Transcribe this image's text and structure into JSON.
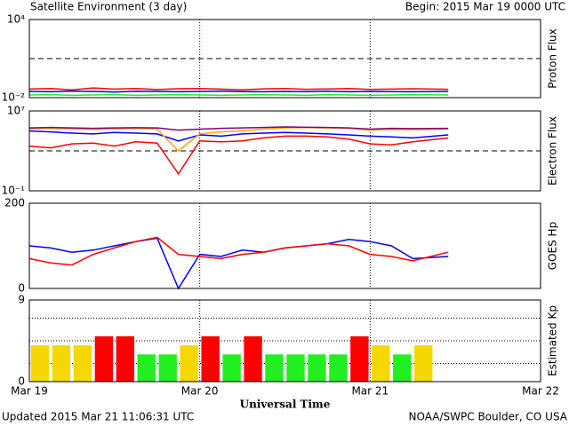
{
  "header": {
    "title": "Satellite Environment (3 day)",
    "begin": "Begin:  2015 Mar 19 0000 UTC"
  },
  "footer": {
    "updated": "Updated 2015 Mar 21 11:06:31 UTC",
    "credit": "NOAA/SWPC Boulder, CO USA"
  },
  "chart_data": [
    {
      "type": "line",
      "ylabel": "Proton Flux",
      "log": true,
      "ylim": [
        0.01,
        10000
      ],
      "yticks": [
        {
          "value": 10000,
          "label": "10⁴"
        },
        {
          "value": 0.01,
          "label": "10⁻²"
        }
      ],
      "xlim": [
        0,
        72
      ],
      "xticks": [
        0,
        24,
        48,
        72
      ],
      "threshold": 10,
      "x": [
        0,
        3,
        6,
        9,
        12,
        15,
        18,
        21,
        24,
        27,
        30,
        33,
        36,
        39,
        42,
        45,
        48,
        51,
        54,
        59
      ],
      "series": [
        {
          "color": "#ff0000",
          "values": [
            0.045,
            0.05,
            0.04,
            0.055,
            0.045,
            0.05,
            0.042,
            0.048,
            0.05,
            0.045,
            0.04,
            0.047,
            0.05,
            0.044,
            0.046,
            0.05,
            0.043,
            0.045,
            0.048,
            0.044
          ]
        },
        {
          "color": "#0000ff",
          "values": [
            0.03,
            0.028,
            0.032,
            0.03,
            0.027,
            0.031,
            0.03,
            0.028,
            0.03,
            0.032,
            0.029,
            0.028,
            0.03,
            0.029,
            0.031,
            0.028,
            0.03,
            0.029,
            0.028,
            0.03
          ]
        },
        {
          "color": "#22ee22",
          "values": [
            0.016,
            0.017,
            0.015,
            0.016,
            0.017,
            0.015,
            0.016,
            0.017,
            0.016,
            0.015,
            0.016,
            0.017,
            0.016,
            0.015,
            0.017,
            0.016,
            0.015,
            0.016,
            0.017,
            0.016
          ]
        }
      ]
    },
    {
      "type": "line",
      "ylabel": "Electron Flux",
      "log": true,
      "ylim": [
        0.1,
        10000000
      ],
      "yticks": [
        {
          "value": 10000000,
          "label": "10⁷"
        },
        {
          "value": 0.1,
          "label": "10⁻¹"
        }
      ],
      "xlim": [
        0,
        72
      ],
      "xticks": [
        0,
        24,
        48,
        72
      ],
      "threshold": 1000,
      "x": [
        0,
        3,
        6,
        9,
        12,
        15,
        18,
        21,
        24,
        27,
        30,
        33,
        36,
        39,
        42,
        45,
        48,
        51,
        54,
        59
      ],
      "series": [
        {
          "color": "#ff0000",
          "values": [
            3000,
            2000,
            5000,
            6000,
            3000,
            8000,
            6000,
            5,
            10000,
            8000,
            10000,
            20000,
            30000,
            30000,
            25000,
            15000,
            5000,
            4000,
            8000,
            20000
          ]
        },
        {
          "color": "#0000ff",
          "values": [
            100000,
            80000,
            60000,
            50000,
            70000,
            60000,
            50000,
            10000,
            40000,
            30000,
            50000,
            60000,
            70000,
            60000,
            50000,
            40000,
            30000,
            25000,
            20000,
            40000
          ]
        },
        {
          "color": "#ffa500",
          "values": [
            160000,
            180000,
            150000,
            140000,
            160000,
            170000,
            150000,
            1000,
            50000,
            80000,
            100000,
            150000,
            200000,
            220000,
            200000,
            180000,
            120000,
            140000,
            130000,
            150000
          ]
        },
        {
          "color": "#800080",
          "values": [
            200000,
            220000,
            200000,
            180000,
            200000,
            210000,
            200000,
            120000,
            150000,
            180000,
            200000,
            220000,
            250000,
            230000,
            220000,
            200000,
            150000,
            180000,
            170000,
            180000
          ]
        }
      ]
    },
    {
      "type": "line",
      "ylabel": "GOES Hp",
      "log": false,
      "ylim": [
        0,
        200
      ],
      "yticks": [
        200,
        0
      ],
      "xlim": [
        0,
        72
      ],
      "xticks": [
        0,
        24,
        48,
        72
      ],
      "x": [
        0,
        3,
        6,
        9,
        12,
        15,
        18,
        21,
        24,
        27,
        30,
        33,
        36,
        39,
        42,
        45,
        48,
        51,
        54,
        59
      ],
      "series": [
        {
          "color": "#0000ff",
          "values": [
            100,
            95,
            85,
            90,
            100,
            110,
            118,
            0,
            80,
            75,
            90,
            85,
            95,
            100,
            105,
            115,
            110,
            100,
            70,
            75
          ]
        },
        {
          "color": "#ff0000",
          "values": [
            70,
            60,
            55,
            80,
            95,
            110,
            120,
            80,
            75,
            70,
            80,
            85,
            95,
            100,
            105,
            100,
            80,
            75,
            65,
            85
          ]
        }
      ]
    },
    {
      "type": "bar",
      "ylabel": "Estimated Kp",
      "log": false,
      "ylim": [
        0,
        9
      ],
      "yticks": [
        9,
        0
      ],
      "grid_y": [
        2,
        4.5,
        7
      ],
      "xlabel": "Universal Time",
      "xlim": [
        0,
        72
      ],
      "xticks": [
        {
          "value": 0,
          "label": "Mar 19"
        },
        {
          "value": 24,
          "label": "Mar 20"
        },
        {
          "value": 48,
          "label": "Mar 21"
        },
        {
          "value": 72,
          "label": "Mar 22"
        }
      ],
      "x": [
        1.5,
        4.5,
        7.5,
        10.5,
        13.5,
        16.5,
        19.5,
        22.5,
        25.5,
        28.5,
        31.5,
        34.5,
        37.5,
        40.5,
        43.5,
        46.5,
        49.5,
        52.5,
        55.5
      ],
      "values": [
        4,
        4,
        4,
        5,
        5,
        3,
        3,
        4,
        5,
        3,
        5,
        3,
        3,
        3,
        3,
        5,
        4,
        3,
        4
      ],
      "colors": [
        "#f5d800",
        "#f5d800",
        "#f5d800",
        "#ff0000",
        "#ff0000",
        "#22ee22",
        "#22ee22",
        "#f5d800",
        "#ff0000",
        "#22ee22",
        "#ff0000",
        "#22ee22",
        "#22ee22",
        "#22ee22",
        "#22ee22",
        "#ff0000",
        "#f5d800",
        "#22ee22",
        "#f5d800"
      ]
    }
  ]
}
